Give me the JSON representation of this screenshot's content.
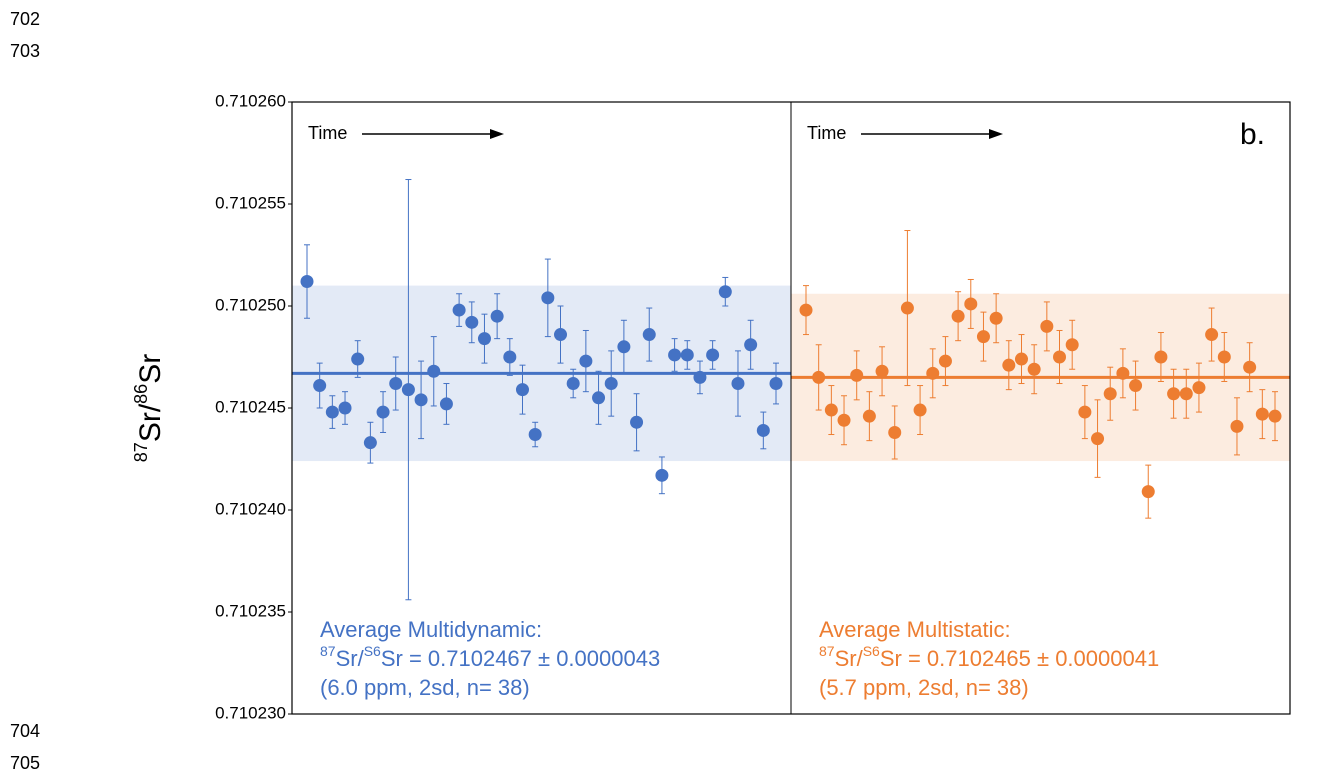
{
  "line_numbers": [
    "702",
    "703",
    "704",
    "705"
  ],
  "chart_data": {
    "type": "scatter",
    "y_label": {
      "sup1": "87",
      "mid": "Sr/",
      "sup2": "86",
      "end": "Sr"
    },
    "ylim": [
      0.71023,
      0.71026
    ],
    "yticks": [
      {
        "value": 0.71023,
        "label": "0.710230"
      },
      {
        "value": 0.710235,
        "label": "0.710235"
      },
      {
        "value": 0.71024,
        "label": "0.710240"
      },
      {
        "value": 0.710245,
        "label": "0.710245"
      },
      {
        "value": 0.71025,
        "label": "0.710250"
      },
      {
        "value": 0.710255,
        "label": "0.710255"
      },
      {
        "value": 0.71026,
        "label": "0.710260"
      }
    ],
    "panel_label": "b.",
    "panels": [
      {
        "time_label": "Time",
        "color": "#4472c4",
        "band_color": "#dae3f3",
        "mean": 0.7102467,
        "two_sd": 4.3e-06,
        "annotation": {
          "line1": "Average Multidynamic:",
          "sup1": "87",
          "mid": "Sr/",
          "sup2": "S6",
          "end": "Sr = 0.7102467 ± 0.0000043",
          "line3": "(6.0 ppm, 2sd, n= 38)"
        },
        "values": [
          0.7102512,
          0.7102461,
          0.7102448,
          0.710245,
          0.7102474,
          0.7102433,
          0.7102448,
          0.7102462,
          0.7102459,
          0.7102454,
          0.7102468,
          0.7102452,
          0.7102498,
          0.7102492,
          0.7102484,
          0.7102495,
          0.7102475,
          0.7102459,
          0.7102437,
          0.7102504,
          0.7102486,
          0.7102462,
          0.7102473,
          0.7102455,
          0.7102462,
          0.710248,
          0.7102443,
          0.7102486,
          0.7102417,
          0.7102476,
          0.7102476,
          0.7102465,
          0.7102476,
          0.7102507,
          0.7102462,
          0.7102481,
          0.7102439,
          0.7102462
        ],
        "errors": [
          1.8e-06,
          1.1e-06,
          8e-07,
          8e-07,
          9e-07,
          1e-06,
          1e-06,
          1.3e-06,
          1.03e-05,
          1.9e-06,
          1.7e-06,
          1e-06,
          8e-07,
          1e-06,
          1.2e-06,
          1.1e-06,
          9e-07,
          1.2e-06,
          6e-07,
          1.9e-06,
          1.4e-06,
          7e-07,
          1.5e-06,
          1.3e-06,
          1.6e-06,
          1.3e-06,
          1.4e-06,
          1.3e-06,
          9e-07,
          8e-07,
          7e-07,
          8e-07,
          7e-07,
          7e-07,
          1.6e-06,
          1.2e-06,
          9e-07,
          1e-06
        ]
      },
      {
        "time_label": "Time",
        "color": "#ed7d31",
        "band_color": "#fbe5d6",
        "mean": 0.7102465,
        "two_sd": 4.1e-06,
        "annotation": {
          "line1": "Average Multistatic:",
          "sup1": "87",
          "mid": "Sr/",
          "sup2": "S6",
          "end": "Sr = 0.7102465 ± 0.0000041",
          "line3": "(5.7 ppm, 2sd, n= 38)"
        },
        "values": [
          0.7102498,
          0.7102465,
          0.7102449,
          0.7102444,
          0.7102466,
          0.7102446,
          0.7102468,
          0.7102438,
          0.7102499,
          0.7102449,
          0.7102467,
          0.7102473,
          0.7102495,
          0.7102501,
          0.7102485,
          0.7102494,
          0.7102471,
          0.7102474,
          0.7102469,
          0.710249,
          0.7102475,
          0.7102481,
          0.7102448,
          0.7102435,
          0.7102457,
          0.7102467,
          0.7102461,
          0.7102409,
          0.7102475,
          0.7102457,
          0.7102457,
          0.710246,
          0.7102486,
          0.7102475,
          0.7102441,
          0.710247,
          0.7102447,
          0.7102446
        ],
        "errors": [
          1.2e-06,
          1.6e-06,
          1.2e-06,
          1.2e-06,
          1.2e-06,
          1.2e-06,
          1.2e-06,
          1.3e-06,
          3.8e-06,
          1.2e-06,
          1.2e-06,
          1.2e-06,
          1.2e-06,
          1.2e-06,
          1.2e-06,
          1.2e-06,
          1.2e-06,
          1.2e-06,
          1.2e-06,
          1.2e-06,
          1.3e-06,
          1.2e-06,
          1.3e-06,
          1.9e-06,
          1.3e-06,
          1.2e-06,
          1.2e-06,
          1.3e-06,
          1.2e-06,
          1.2e-06,
          1.2e-06,
          1.2e-06,
          1.3e-06,
          1.2e-06,
          1.4e-06,
          1.2e-06,
          1.2e-06,
          1.2e-06
        ]
      }
    ]
  }
}
